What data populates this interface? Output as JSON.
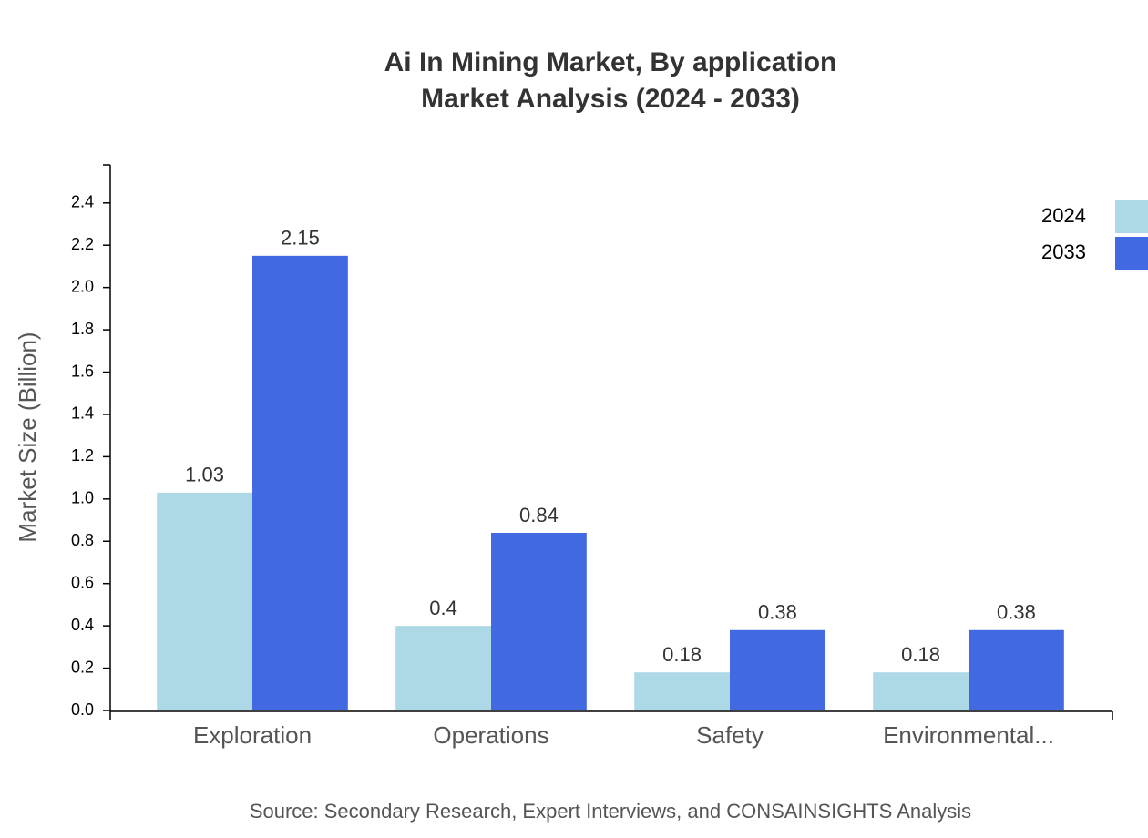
{
  "chart_data": {
    "type": "bar",
    "title": "Ai In Mining Market, By application",
    "subtitle": "Market Analysis (2024 - 2033)",
    "y_label": "Market Size (Billion)",
    "source": "Source: Secondary Research, Expert Interviews, and CONSAINSIGHTS Analysis",
    "categories": [
      "Exploration",
      "Operations",
      "Safety",
      "Environmental..."
    ],
    "series": [
      {
        "name": "2024",
        "color": "#add8e6",
        "values": [
          1.03,
          0.4,
          0.18,
          0.18
        ]
      },
      {
        "name": "2033",
        "color": "#4169e1",
        "values": [
          2.15,
          0.84,
          0.38,
          0.38
        ]
      }
    ],
    "ylim": [
      0,
      2.58
    ],
    "yticks": [
      {
        "value": 0,
        "label": "0.0"
      },
      0.2,
      0.4,
      0.6,
      0.8,
      {
        "value": 1,
        "label": "1.0"
      },
      1.2,
      1.4,
      1.6,
      1.8,
      {
        "value": 2,
        "label": "2.0"
      },
      2.2,
      2.4
    ],
    "legend": "top-right"
  }
}
